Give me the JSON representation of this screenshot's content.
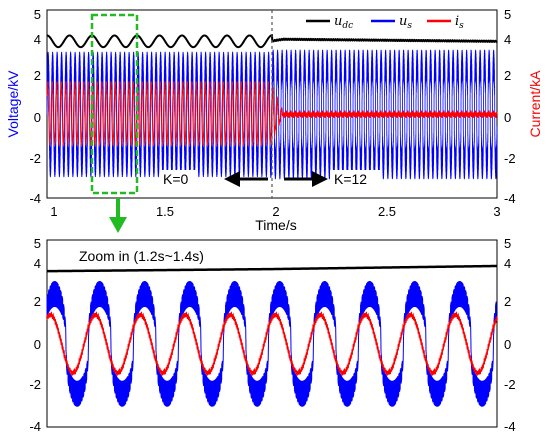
{
  "colors": {
    "udc": "#000000",
    "us": "#0000ff",
    "is": "#ff0000",
    "zoom_box": "#22bb22",
    "arrow_green": "#22bb22",
    "divider": "#555555"
  },
  "legend": {
    "udc": {
      "base": "u",
      "sub": "dc"
    },
    "us": {
      "base": "u",
      "sub": "s"
    },
    "is": {
      "base": "i",
      "sub": "s"
    }
  },
  "top_plot": {
    "ylabel_left": "Voltage/kV",
    "ylabel_right": "Current/kA",
    "xlabel": "Time/s",
    "left_ticks": [
      "5",
      "4",
      "2",
      "0",
      "-2",
      "-4"
    ],
    "right_ticks": [
      "5",
      "4",
      "2",
      "0",
      "-2",
      "-4"
    ],
    "x_ticks": [
      "1",
      "1.5",
      "2",
      "2.5",
      "3"
    ],
    "label_k0": "K=0",
    "label_k12": "K=12"
  },
  "bottom_plot": {
    "annotation": "Zoom in (1.2s~1.4s)",
    "left_ticks": [
      "5",
      "4",
      "2",
      "0",
      "-2",
      "-4"
    ],
    "right_ticks": [
      "5",
      "4",
      "2",
      "0",
      "-2",
      "-4"
    ]
  },
  "chart_data": [
    {
      "type": "line",
      "title": "",
      "xlabel": "Time/s",
      "ylabel": "Voltage/kV",
      "ylabel_right": "Current/kA",
      "xlim": [
        1,
        3
      ],
      "ylim": [
        -4,
        5
      ],
      "ylim_right": [
        -4,
        5
      ],
      "legend_position": "top-right",
      "grid": false,
      "event_time": 2.0,
      "zoom_window": [
        1.2,
        1.4
      ],
      "series": [
        {
          "name": "udc",
          "axis": "left",
          "x": [
            1.0,
            1.5,
            1.99,
            2.05,
            3.0
          ],
          "y": [
            3.5,
            3.5,
            3.5,
            3.6,
            3.5
          ],
          "ripple_amplitude": 0.28,
          "ripple_after_2s": 0.03
        },
        {
          "name": "us",
          "axis": "left",
          "x": [
            1.0,
            1.99,
            2.0,
            3.0
          ],
          "amplitude": [
            3.0,
            3.0,
            3.1,
            3.1
          ],
          "frequency_hz": 50
        },
        {
          "name": "is",
          "axis": "right",
          "x": [
            1.0,
            1.99,
            2.05,
            3.0
          ],
          "amplitude": [
            1.4,
            1.4,
            0.05,
            0.05
          ],
          "frequency_hz": 50
        }
      ]
    },
    {
      "type": "line",
      "title": "Zoom in (1.2s~1.4s)",
      "xlim": [
        1.2,
        1.4
      ],
      "ylim": [
        -4,
        5
      ],
      "ylim_right": [
        -4,
        5
      ],
      "grid": false,
      "series": [
        {
          "name": "udc",
          "axis": "left",
          "x": [
            1.2,
            1.3,
            1.4
          ],
          "y": [
            3.5,
            3.6,
            3.75
          ]
        },
        {
          "name": "us",
          "axis": "left",
          "amplitude": 3.0,
          "frequency_hz": 50
        },
        {
          "name": "is",
          "axis": "right",
          "amplitude": 1.4,
          "frequency_hz": 50
        }
      ]
    }
  ]
}
